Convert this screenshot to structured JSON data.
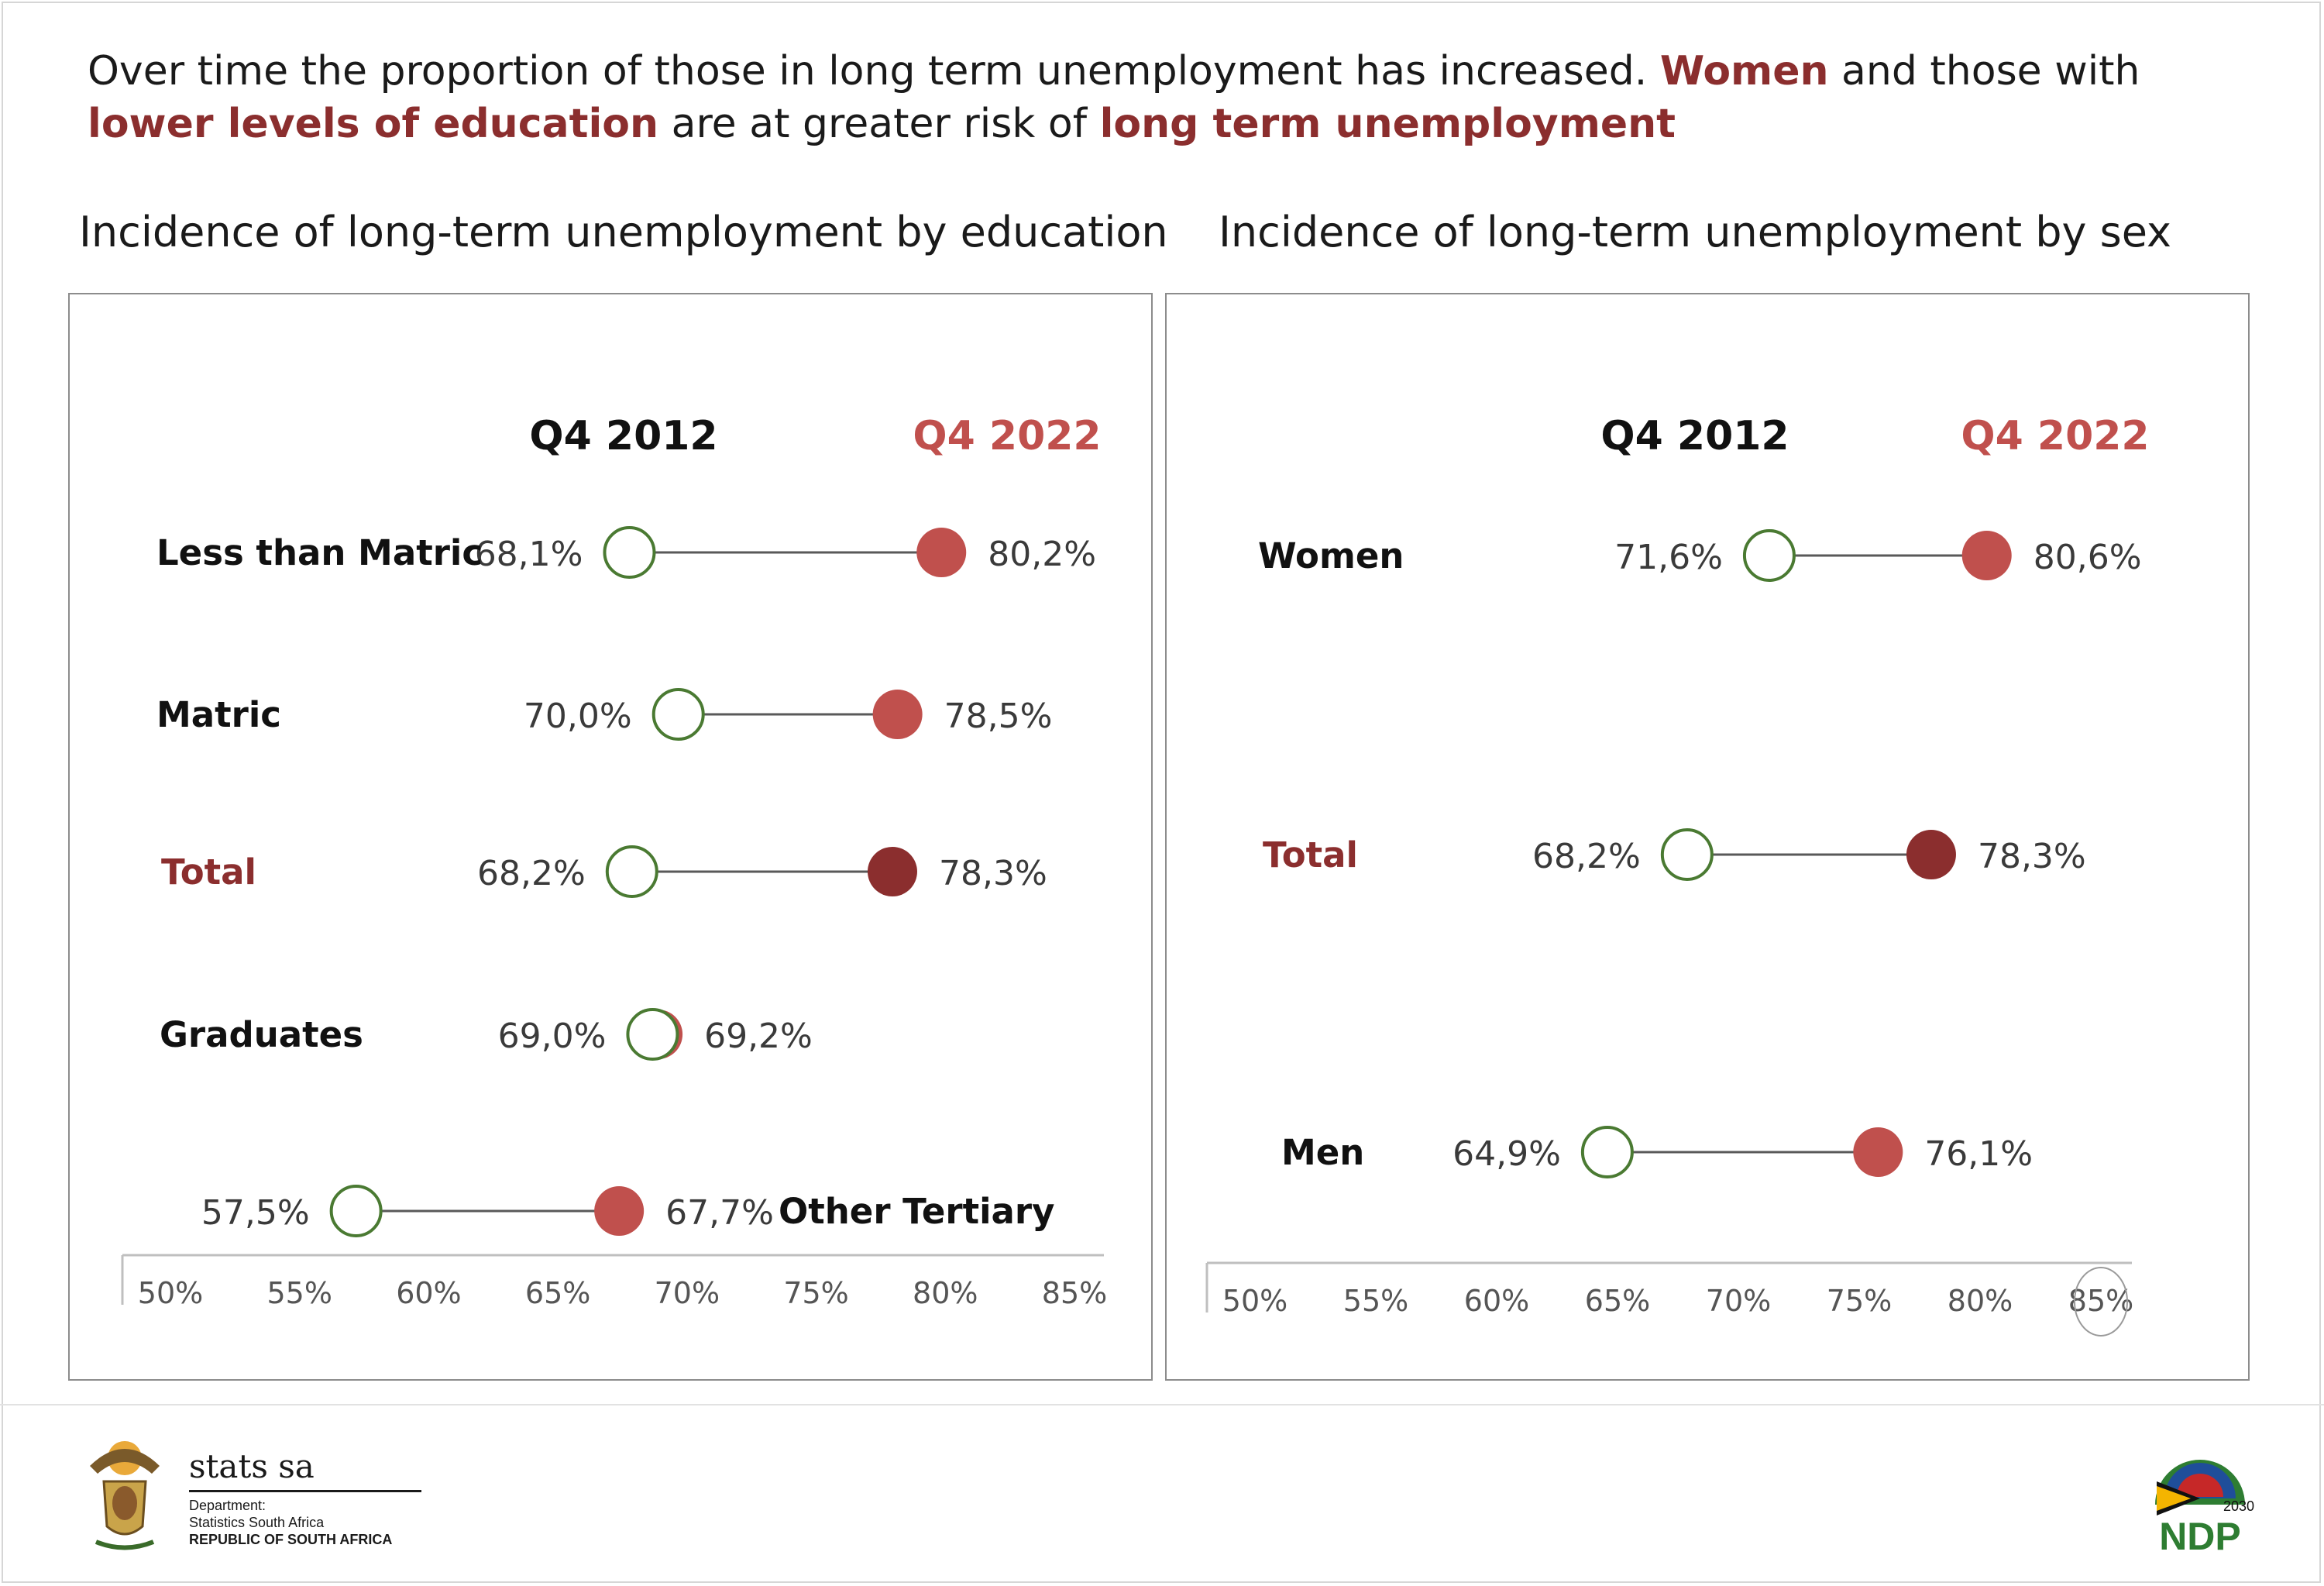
{
  "headline": {
    "part1": "Over time the proportion of those in long term unemployment has increased. ",
    "part2": "Women",
    "part3": " and those with ",
    "part4": "lower levels of education",
    "part5": " are at greater risk of ",
    "part6": "long term unemployment"
  },
  "footer": {
    "stats_name": "stats sa",
    "dept_line1": "Department:",
    "dept_line2": "Statistics South Africa",
    "dept_line3": "REPUBLIC OF SOUTH AFRICA",
    "ndp_year": "2030",
    "ndp_text": "NDP"
  },
  "colors": {
    "q2012": "#4a7a32",
    "q2022": "#c0504d",
    "total_2022": "#8b2e2e",
    "total_label": "#8b2e2e",
    "connector": "#595959"
  },
  "chart_data": [
    {
      "type": "dumbbell",
      "title": "Incidence of long-term unemployment by education",
      "legend": [
        "Q4 2012",
        "Q4 2022"
      ],
      "xlim": [
        50,
        85
      ],
      "ticks": [
        "50%",
        "55%",
        "60%",
        "65%",
        "70%",
        "75%",
        "80%",
        "85%"
      ],
      "series": [
        {
          "category": "Less than Matric",
          "q2012": 68.1,
          "q2022": 80.2,
          "label2012": "68,1%",
          "label2022": "80,2%"
        },
        {
          "category": "Matric",
          "q2012": 70.0,
          "q2022": 78.5,
          "label2012": "70,0%",
          "label2022": "78,5%"
        },
        {
          "category": "Total",
          "q2012": 68.2,
          "q2022": 78.3,
          "label2012": "68,2%",
          "label2022": "78,3%"
        },
        {
          "category": "Graduates",
          "q2012": 69.0,
          "q2022": 69.2,
          "label2012": "69,0%",
          "label2022": "69,2%"
        },
        {
          "category": "Other Tertiary",
          "q2012": 57.5,
          "q2022": 67.7,
          "label2012": "57,5%",
          "label2022": "67,7%"
        }
      ]
    },
    {
      "type": "dumbbell",
      "title": "Incidence of long-term unemployment by sex",
      "legend": [
        "Q4 2012",
        "Q4 2022"
      ],
      "xlim": [
        50,
        85
      ],
      "ticks": [
        "50%",
        "55%",
        "60%",
        "65%",
        "70%",
        "75%",
        "80%",
        "85%"
      ],
      "series": [
        {
          "category": "Women",
          "q2012": 71.6,
          "q2022": 80.6,
          "label2012": "71,6%",
          "label2022": "80,6%"
        },
        {
          "category": "Total",
          "q2012": 68.2,
          "q2022": 78.3,
          "label2012": "68,2%",
          "label2022": "78,3%"
        },
        {
          "category": "Men",
          "q2012": 64.9,
          "q2022": 76.1,
          "label2012": "64,9%",
          "label2022": "76,1%"
        }
      ]
    }
  ]
}
